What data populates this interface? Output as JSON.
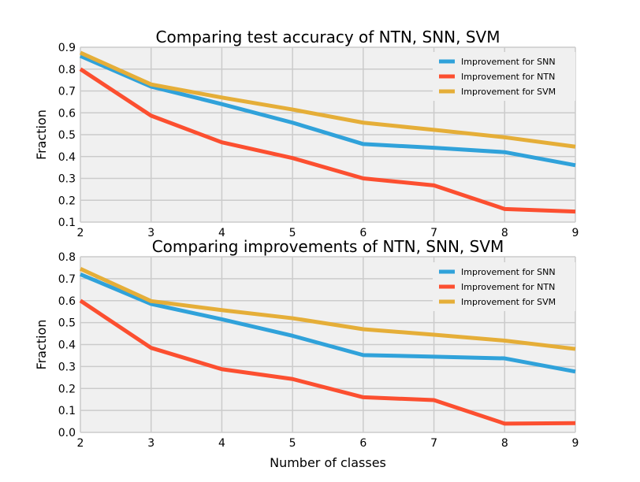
{
  "chart_data": [
    {
      "type": "line",
      "title": "Comparing test accuracy of NTN, SNN, SVM",
      "xlabel": "",
      "ylabel": "Fraction",
      "x": [
        2,
        3,
        4,
        5,
        6,
        7,
        8,
        9
      ],
      "xlim": [
        2,
        9
      ],
      "ylim": [
        0.1,
        0.9
      ],
      "xticks": [
        "2",
        "3",
        "4",
        "5",
        "6",
        "7",
        "8",
        "9"
      ],
      "yticks": [
        "0.1",
        "0.2",
        "0.3",
        "0.4",
        "0.5",
        "0.6",
        "0.7",
        "0.8",
        "0.9"
      ],
      "grid": true,
      "legend_position": "top-right",
      "series": [
        {
          "name": "Improvement for SNN",
          "color": "#30a2da",
          "values": [
            0.86,
            0.72,
            0.64,
            0.555,
            0.457,
            0.44,
            0.42,
            0.36
          ]
        },
        {
          "name": "Improvement for NTN",
          "color": "#fc4f30",
          "values": [
            0.8,
            0.587,
            0.465,
            0.393,
            0.3,
            0.268,
            0.16,
            0.148
          ]
        },
        {
          "name": "Improvement for SVM",
          "color": "#e5ae38",
          "values": [
            0.875,
            0.73,
            0.67,
            0.615,
            0.555,
            0.522,
            0.488,
            0.445
          ]
        }
      ]
    },
    {
      "type": "line",
      "title": "Comparing improvements of NTN, SNN, SVM",
      "xlabel": "Number of classes",
      "ylabel": "Fraction",
      "x": [
        2,
        3,
        4,
        5,
        6,
        7,
        8,
        9
      ],
      "xlim": [
        2,
        9
      ],
      "ylim": [
        0.0,
        0.8
      ],
      "xticks": [
        "2",
        "3",
        "4",
        "5",
        "6",
        "7",
        "8",
        "9"
      ],
      "yticks": [
        "0.0",
        "0.1",
        "0.2",
        "0.3",
        "0.4",
        "0.5",
        "0.6",
        "0.7",
        "0.8"
      ],
      "grid": true,
      "legend_position": "top-right",
      "series": [
        {
          "name": "Improvement for SNN",
          "color": "#30a2da",
          "values": [
            0.72,
            0.585,
            0.515,
            0.44,
            0.352,
            0.345,
            0.337,
            0.277
          ]
        },
        {
          "name": "Improvement for NTN",
          "color": "#fc4f30",
          "values": [
            0.6,
            0.385,
            0.288,
            0.243,
            0.16,
            0.147,
            0.04,
            0.042
          ]
        },
        {
          "name": "Improvement for SVM",
          "color": "#e5ae38",
          "values": [
            0.745,
            0.598,
            0.557,
            0.52,
            0.47,
            0.445,
            0.418,
            0.38
          ]
        }
      ]
    }
  ]
}
